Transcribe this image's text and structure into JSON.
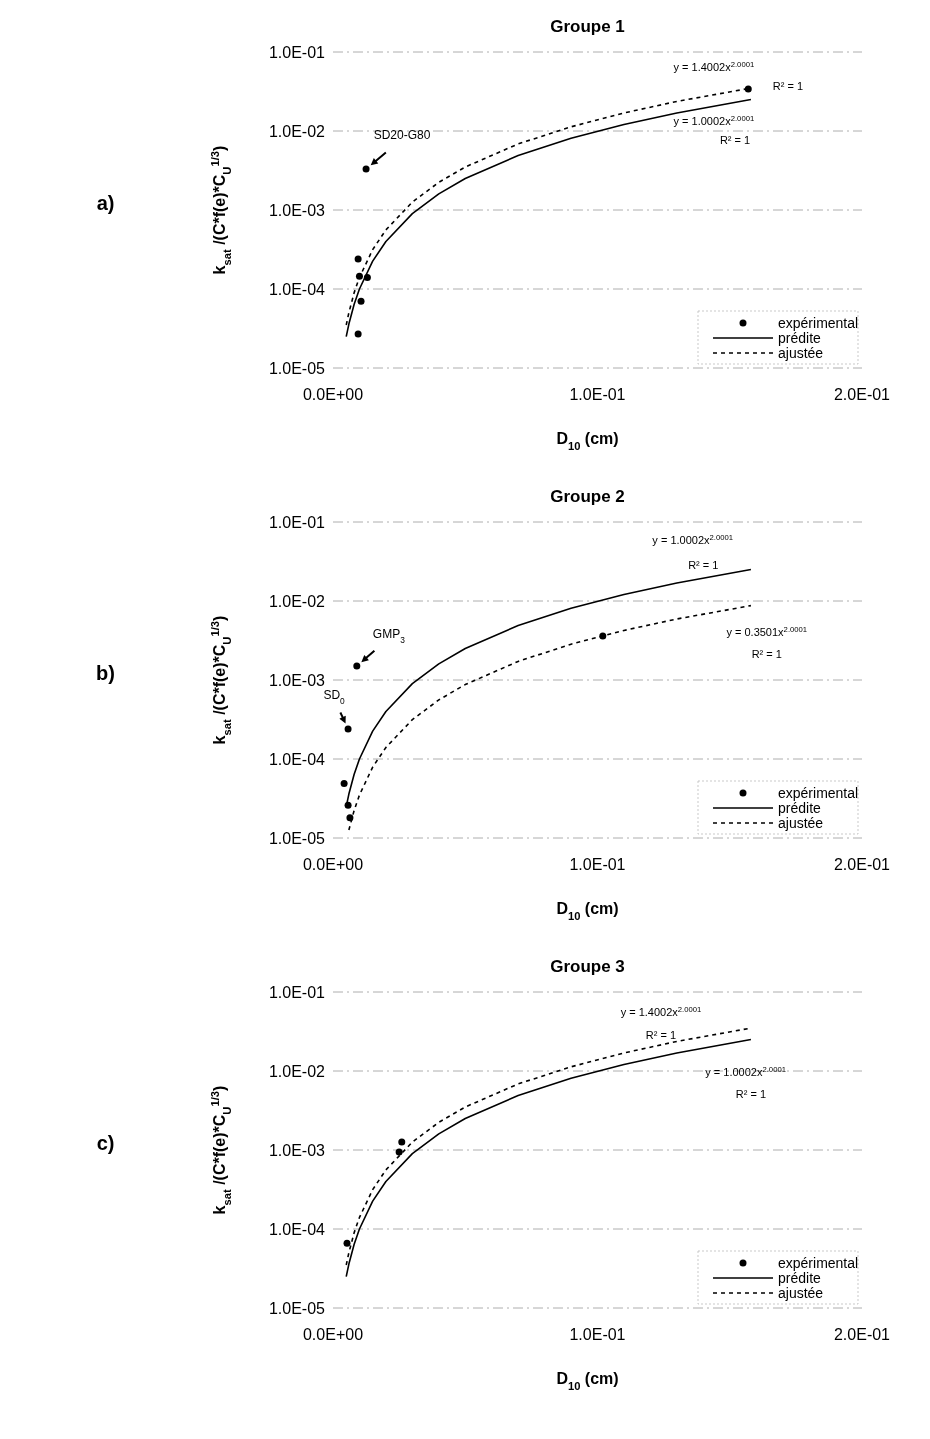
{
  "chart_data": [
    {
      "type": "line",
      "title": "Groupe 1",
      "xlabel": "D$_{10}$ (cm)",
      "ylabel": "k$_{sat}$ /(C*f(e)*C$_{U}$$^{1/3}$)",
      "log": "y",
      "grid": "y",
      "legend": "bottom right",
      "xlim": [
        0,
        0.2
      ],
      "xticks": [
        {
          "value": 0,
          "label": "0.0E+00"
        },
        {
          "value": 0.1,
          "label": "1.0E-01"
        },
        {
          "value": 0.2,
          "label": "2.0E-01"
        }
      ],
      "ylim": [
        1e-05,
        0.1
      ],
      "yticks": [
        {
          "value": 1e-05,
          "label": "1.0E-05"
        },
        {
          "value": 0.0001,
          "label": "1.0E-04"
        },
        {
          "value": 0.001,
          "label": "1.0E-03"
        },
        {
          "value": 0.01,
          "label": "1.0E-02"
        },
        {
          "value": 0.1,
          "label": "1.0E-01"
        }
      ],
      "annotations": [
        "a)",
        {
          "text": "SD20-G80",
          "x": 0.0125,
          "y": 0.0033
        },
        "y = 1.4002x$^{2.0001}$",
        "R² = 1",
        "y = 1.0002x$^{2.0001}$",
        "R² = 1"
      ],
      "series": [
        {
          "name": "expérimental",
          "type": "scatter",
          "marker": "circle",
          "color": "#000000",
          "x": [
            0.0125,
            0.0095,
            0.01,
            0.013,
            0.0106,
            0.0095,
            0.157
          ],
          "values": [
            0.0033,
            0.00024,
            0.000145,
            0.00014,
            7e-05,
            2.7e-05,
            0.034
          ]
        },
        {
          "name": "prédite",
          "type": "line",
          "line_style": "solid",
          "color": "#000000",
          "x": [
            0.005,
            0.006,
            0.008,
            0.01,
            0.015,
            0.02,
            0.03,
            0.04,
            0.05,
            0.07,
            0.09,
            0.11,
            0.13,
            0.158
          ],
          "values": [
            2.5e-05,
            3.6e-05,
            6.4e-05,
            0.0001,
            0.000225,
            0.0004,
            0.0009,
            0.0016,
            0.0025,
            0.0049,
            0.0081,
            0.0121,
            0.0169,
            0.025
          ]
        },
        {
          "name": "ajustée",
          "type": "line",
          "line_style": "dashed",
          "color": "#000000",
          "x": [
            0.005,
            0.006,
            0.008,
            0.01,
            0.015,
            0.02,
            0.03,
            0.04,
            0.05,
            0.07,
            0.09,
            0.11,
            0.13,
            0.158
          ],
          "values": [
            3.5e-05,
            5e-05,
            9e-05,
            0.00014,
            0.000315,
            0.00056,
            0.00126,
            0.00224,
            0.0035,
            0.00686,
            0.0113,
            0.0169,
            0.0237,
            0.0349
          ]
        }
      ]
    },
    {
      "type": "line",
      "title": "Groupe 2",
      "xlabel": "D$_{10}$ (cm)",
      "ylabel": "k$_{sat}$ /(C*f(e)*C$_{U}$$^{1/3}$)",
      "log": "y",
      "grid": "y",
      "legend": "bottom right",
      "xlim": [
        0,
        0.2
      ],
      "xticks": [
        {
          "value": 0,
          "label": "0.0E+00"
        },
        {
          "value": 0.1,
          "label": "1.0E-01"
        },
        {
          "value": 0.2,
          "label": "2.0E-01"
        }
      ],
      "ylim": [
        1e-05,
        0.1
      ],
      "yticks": [
        {
          "value": 1e-05,
          "label": "1.0E-05"
        },
        {
          "value": 0.0001,
          "label": "1.0E-04"
        },
        {
          "value": 0.001,
          "label": "1.0E-03"
        },
        {
          "value": 0.01,
          "label": "1.0E-02"
        },
        {
          "value": 0.1,
          "label": "1.0E-01"
        }
      ],
      "annotations": [
        "b)",
        {
          "text": "GMP$_{3}$",
          "x": 0.009,
          "y": 0.0015
        },
        {
          "text": "SD$_{0}$",
          "x": 0.0057,
          "y": 0.00024
        },
        "y = 1.0002x$^{2.0001}$",
        "R² = 1",
        "y = 0.3501x$^{2.0001}$",
        "R² = 1"
      ],
      "series": [
        {
          "name": "expérimental",
          "type": "scatter",
          "marker": "circle",
          "color": "#000000",
          "x": [
            0.009,
            0.0057,
            0.0042,
            0.0057,
            0.0064,
            0.102
          ],
          "values": [
            0.0015,
            0.00024,
            4.9e-05,
            2.6e-05,
            1.8e-05,
            0.0036
          ]
        },
        {
          "name": "prédite",
          "type": "line",
          "line_style": "solid",
          "color": "#000000",
          "x": [
            0.005,
            0.006,
            0.008,
            0.01,
            0.015,
            0.02,
            0.03,
            0.04,
            0.05,
            0.07,
            0.09,
            0.11,
            0.13,
            0.158
          ],
          "values": [
            2.5e-05,
            3.6e-05,
            6.4e-05,
            0.0001,
            0.000225,
            0.0004,
            0.0009,
            0.0016,
            0.0025,
            0.0049,
            0.0081,
            0.0121,
            0.0169,
            0.025
          ]
        },
        {
          "name": "ajustée",
          "type": "line",
          "line_style": "dashed",
          "color": "#000000",
          "x": [
            0.006,
            0.008,
            0.01,
            0.015,
            0.02,
            0.03,
            0.04,
            0.05,
            0.07,
            0.09,
            0.11,
            0.13,
            0.158
          ],
          "values": [
            1.26e-05,
            2.24e-05,
            3.5e-05,
            7.9e-05,
            0.00014,
            0.000315,
            0.00056,
            0.000875,
            0.00172,
            0.00284,
            0.00424,
            0.00592,
            0.00874
          ]
        }
      ]
    },
    {
      "type": "line",
      "title": "Groupe 3",
      "xlabel": "D$_{10}$ (cm)",
      "ylabel": "k$_{sat}$ /(C*f(e)*C$_{U}$$^{1/3}$)",
      "log": "y",
      "grid": "y",
      "legend": "bottom right",
      "xlim": [
        0,
        0.2
      ],
      "xticks": [
        {
          "value": 0,
          "label": "0.0E+00"
        },
        {
          "value": 0.1,
          "label": "1.0E-01"
        },
        {
          "value": 0.2,
          "label": "2.0E-01"
        }
      ],
      "ylim": [
        1e-05,
        0.1
      ],
      "yticks": [
        {
          "value": 1e-05,
          "label": "1.0E-05"
        },
        {
          "value": 0.0001,
          "label": "1.0E-04"
        },
        {
          "value": 0.001,
          "label": "1.0E-03"
        },
        {
          "value": 0.01,
          "label": "1.0E-02"
        },
        {
          "value": 0.1,
          "label": "1.0E-01"
        }
      ],
      "annotations": [
        "c)",
        "y = 1.4002x$^{2.0001}$",
        "R² = 1",
        "y = 1.0002x$^{2.0001}$",
        "R² = 1"
      ],
      "series": [
        {
          "name": "expérimental",
          "type": "scatter",
          "marker": "circle",
          "color": "#000000",
          "x": [
            0.026,
            0.025,
            0.0053
          ],
          "values": [
            0.00126,
            0.00094,
            6.6e-05
          ]
        },
        {
          "name": "prédite",
          "type": "line",
          "line_style": "solid",
          "color": "#000000",
          "x": [
            0.005,
            0.006,
            0.008,
            0.01,
            0.015,
            0.02,
            0.03,
            0.04,
            0.05,
            0.07,
            0.09,
            0.11,
            0.13,
            0.158
          ],
          "values": [
            2.5e-05,
            3.6e-05,
            6.4e-05,
            0.0001,
            0.000225,
            0.0004,
            0.0009,
            0.0016,
            0.0025,
            0.0049,
            0.0081,
            0.0121,
            0.0169,
            0.025
          ]
        },
        {
          "name": "ajustée",
          "type": "line",
          "line_style": "dashed",
          "color": "#000000",
          "x": [
            0.005,
            0.006,
            0.008,
            0.01,
            0.015,
            0.02,
            0.03,
            0.04,
            0.05,
            0.07,
            0.09,
            0.11,
            0.13,
            0.158
          ],
          "values": [
            3.5e-05,
            5e-05,
            9e-05,
            0.00014,
            0.000315,
            0.00056,
            0.00126,
            0.00224,
            0.0035,
            0.00686,
            0.0113,
            0.0169,
            0.0237,
            0.0349
          ]
        }
      ]
    }
  ]
}
